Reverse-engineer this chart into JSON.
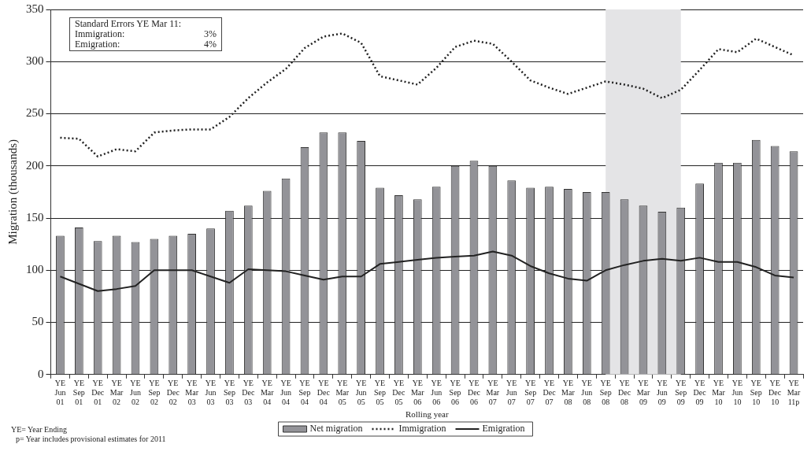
{
  "chart_data": {
    "type": "bar",
    "ylabel": "Migration (thousands)",
    "xlabel": "Rolling year",
    "categories": [
      "YE Jun 01",
      "YE Sep 01",
      "YE Dec 01",
      "YE Mar 02",
      "YE Jun 02",
      "YE Sep 02",
      "YE Dec 02",
      "YE Mar 03",
      "YE Jun 03",
      "YE Sep 03",
      "YE Dec 03",
      "YE Mar 04",
      "YE Jun 04",
      "YE Sep 04",
      "YE Dec 04",
      "YE Mar 05",
      "YE Jun 05",
      "YE Sep 05",
      "YE Dec 05",
      "YE Mar 06",
      "YE Jun 06",
      "YE Sep 06",
      "YE Dec 06",
      "YE Mar 07",
      "YE Jun 07",
      "YE Sep 07",
      "YE Dec 07",
      "YE Mar 08",
      "YE Jun 08",
      "YE Sep 08",
      "YE Dec 08",
      "YE Mar 09",
      "YE Jun 09",
      "YE Sep 09",
      "YE Dec 09",
      "YE Mar 10",
      "YE Jun 10",
      "YE Sep 10",
      "YE Dec 10",
      "YE Mar 11p"
    ],
    "series": [
      {
        "name": "Net migration",
        "color": "#939398",
        "values": [
          133,
          141,
          128,
          133,
          127,
          130,
          133,
          135,
          140,
          157,
          162,
          176,
          188,
          218,
          232,
          232,
          224,
          179,
          172,
          168,
          180,
          200,
          205,
          200,
          186,
          179,
          180,
          178,
          175,
          175,
          168,
          162,
          156,
          160,
          183,
          203,
          203,
          225,
          219,
          214
        ]
      },
      {
        "name": "Immigration",
        "type": "line",
        "line_style": "dotted",
        "color": "#222222",
        "values": [
          227,
          226,
          209,
          216,
          214,
          232,
          234,
          235,
          235,
          247,
          265,
          280,
          293,
          313,
          324,
          327,
          318,
          286,
          282,
          278,
          294,
          314,
          320,
          317,
          300,
          282,
          275,
          269,
          275,
          281,
          278,
          274,
          265,
          273,
          292,
          312,
          309,
          322,
          314,
          306
        ]
      },
      {
        "name": "Emigration",
        "type": "line",
        "line_style": "solid",
        "color": "#222222",
        "values": [
          94,
          87,
          80,
          82,
          85,
          100,
          100,
          100,
          94,
          88,
          101,
          100,
          99,
          95,
          91,
          94,
          94,
          106,
          108,
          110,
          112,
          113,
          114,
          118,
          114,
          104,
          97,
          92,
          90,
          100,
          105,
          109,
          111,
          109,
          112,
          108,
          108,
          103,
          95,
          93
        ]
      }
    ],
    "ylim": [
      0,
      350
    ],
    "yticks": [
      0,
      50,
      100,
      150,
      200,
      250,
      300,
      350
    ],
    "grid": "y",
    "legend": "bottom",
    "marker": "none",
    "bands": [
      {
        "axis": "x",
        "from": "YE Sep 08",
        "to": "YE Sep 09",
        "color": "#e4e4e6"
      }
    ],
    "annotations": [
      "Standard Errors YE Mar 11:",
      "Immigration: 3%",
      "Emigration: 4%",
      "YE= Year Ending",
      "p= Year includes provisional estimates for 2011"
    ]
  }
}
